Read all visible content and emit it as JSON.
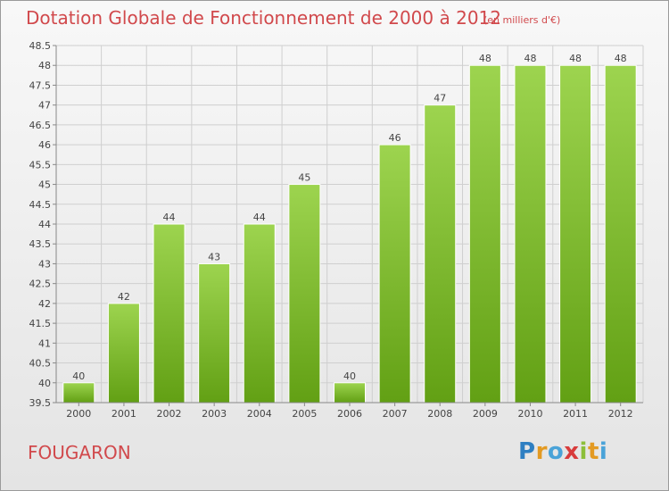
{
  "page": {
    "title": "Dotation Globale de Fonctionnement de 2000 à 2012",
    "unit": "(en milliers d'€)",
    "commune": "FOUGARON",
    "logo_letters": [
      "P",
      "r",
      "o",
      "x",
      "i",
      "t",
      "i"
    ]
  },
  "colors": {
    "title": "#d1494c",
    "bar_top": "#9dd44f",
    "bar_bottom": "#62a014",
    "grid": "#cfcfcf",
    "axis": "#888888",
    "text": "#444444"
  },
  "chart_data": {
    "type": "bar",
    "title": "Dotation Globale de Fonctionnement de 2000 à 2012",
    "xlabel": "",
    "ylabel": "(en milliers d'€)",
    "categories": [
      "2000",
      "2001",
      "2002",
      "2003",
      "2004",
      "2005",
      "2006",
      "2007",
      "2008",
      "2009",
      "2010",
      "2011",
      "2012"
    ],
    "values": [
      40,
      42,
      44,
      43,
      44,
      45,
      40,
      46,
      47,
      48,
      48,
      48,
      48
    ],
    "data_labels": [
      "40",
      "42",
      "44",
      "43",
      "44",
      "45",
      "40",
      "46",
      "47",
      "48",
      "48",
      "48",
      "48"
    ],
    "ylim": [
      39.5,
      48.5
    ],
    "yticks": [
      39.5,
      40,
      40.5,
      41,
      41.5,
      42,
      42.5,
      43,
      43.5,
      44,
      44.5,
      45,
      45.5,
      46,
      46.5,
      47,
      47.5,
      48,
      48.5
    ],
    "ytick_labels": [
      "39.5",
      "40",
      "40.5",
      "41",
      "41.5",
      "42",
      "42.5",
      "43",
      "43.5",
      "44",
      "44.5",
      "45",
      "45.5",
      "46",
      "46.5",
      "47",
      "47.5",
      "48",
      "48.5"
    ],
    "grid": true,
    "legend": "none"
  }
}
